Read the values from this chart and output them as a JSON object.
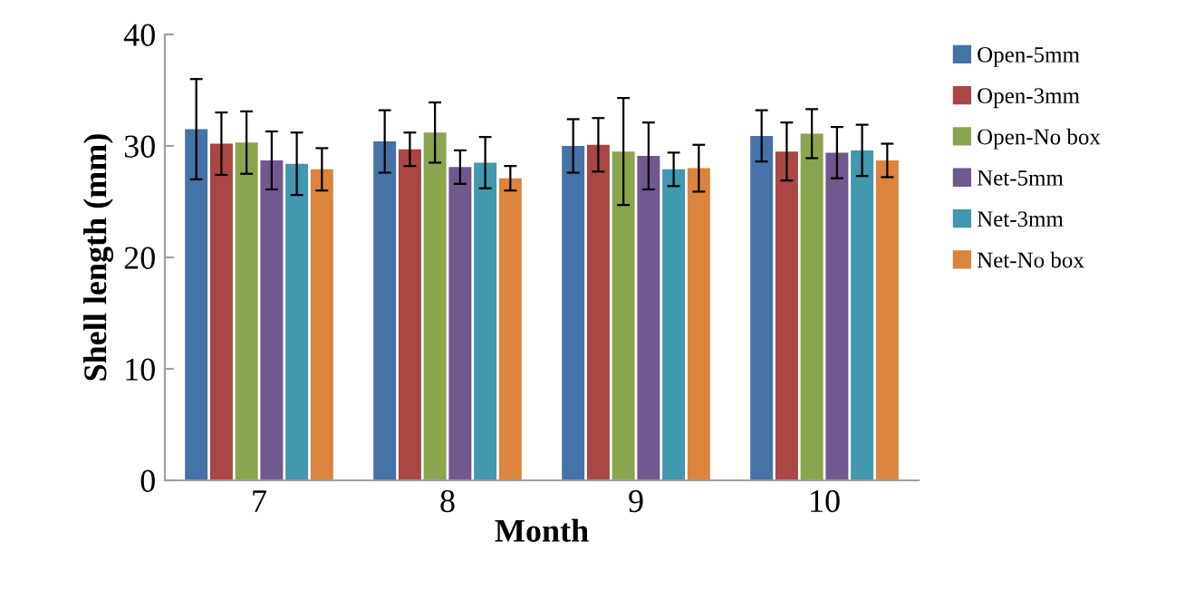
{
  "chart_data": {
    "type": "bar",
    "xlabel": "Month",
    "ylabel": "Shell length (mm)",
    "categories": [
      "7",
      "8",
      "9",
      "10"
    ],
    "ylim": [
      0,
      40
    ],
    "yticks": [
      0,
      10,
      20,
      30,
      40
    ],
    "grid": false,
    "legend": "right",
    "series": [
      {
        "name": "Open-5mm",
        "color": "#4572a7",
        "values": [
          31.5,
          30.4,
          30.0,
          30.9
        ],
        "errors": [
          4.5,
          2.8,
          2.4,
          2.3
        ]
      },
      {
        "name": "Open-3mm",
        "color": "#aa4643",
        "values": [
          30.2,
          29.7,
          30.1,
          29.5
        ],
        "errors": [
          2.8,
          1.5,
          2.4,
          2.6
        ]
      },
      {
        "name": "Open-No box",
        "color": "#89a54e",
        "values": [
          30.3,
          31.2,
          29.5,
          31.1
        ],
        "errors": [
          2.8,
          2.7,
          4.8,
          2.2
        ]
      },
      {
        "name": "Net-5mm",
        "color": "#71588f",
        "values": [
          28.7,
          28.1,
          29.1,
          29.4
        ],
        "errors": [
          2.6,
          1.5,
          3.0,
          2.3
        ]
      },
      {
        "name": "Net-3mm",
        "color": "#4198af",
        "values": [
          28.4,
          28.5,
          27.9,
          29.6
        ],
        "errors": [
          2.8,
          2.3,
          1.5,
          2.3
        ]
      },
      {
        "name": "Net-No box",
        "color": "#db843d",
        "values": [
          27.9,
          27.1,
          28.0,
          28.7
        ],
        "errors": [
          1.9,
          1.1,
          2.1,
          1.5
        ]
      }
    ]
  }
}
